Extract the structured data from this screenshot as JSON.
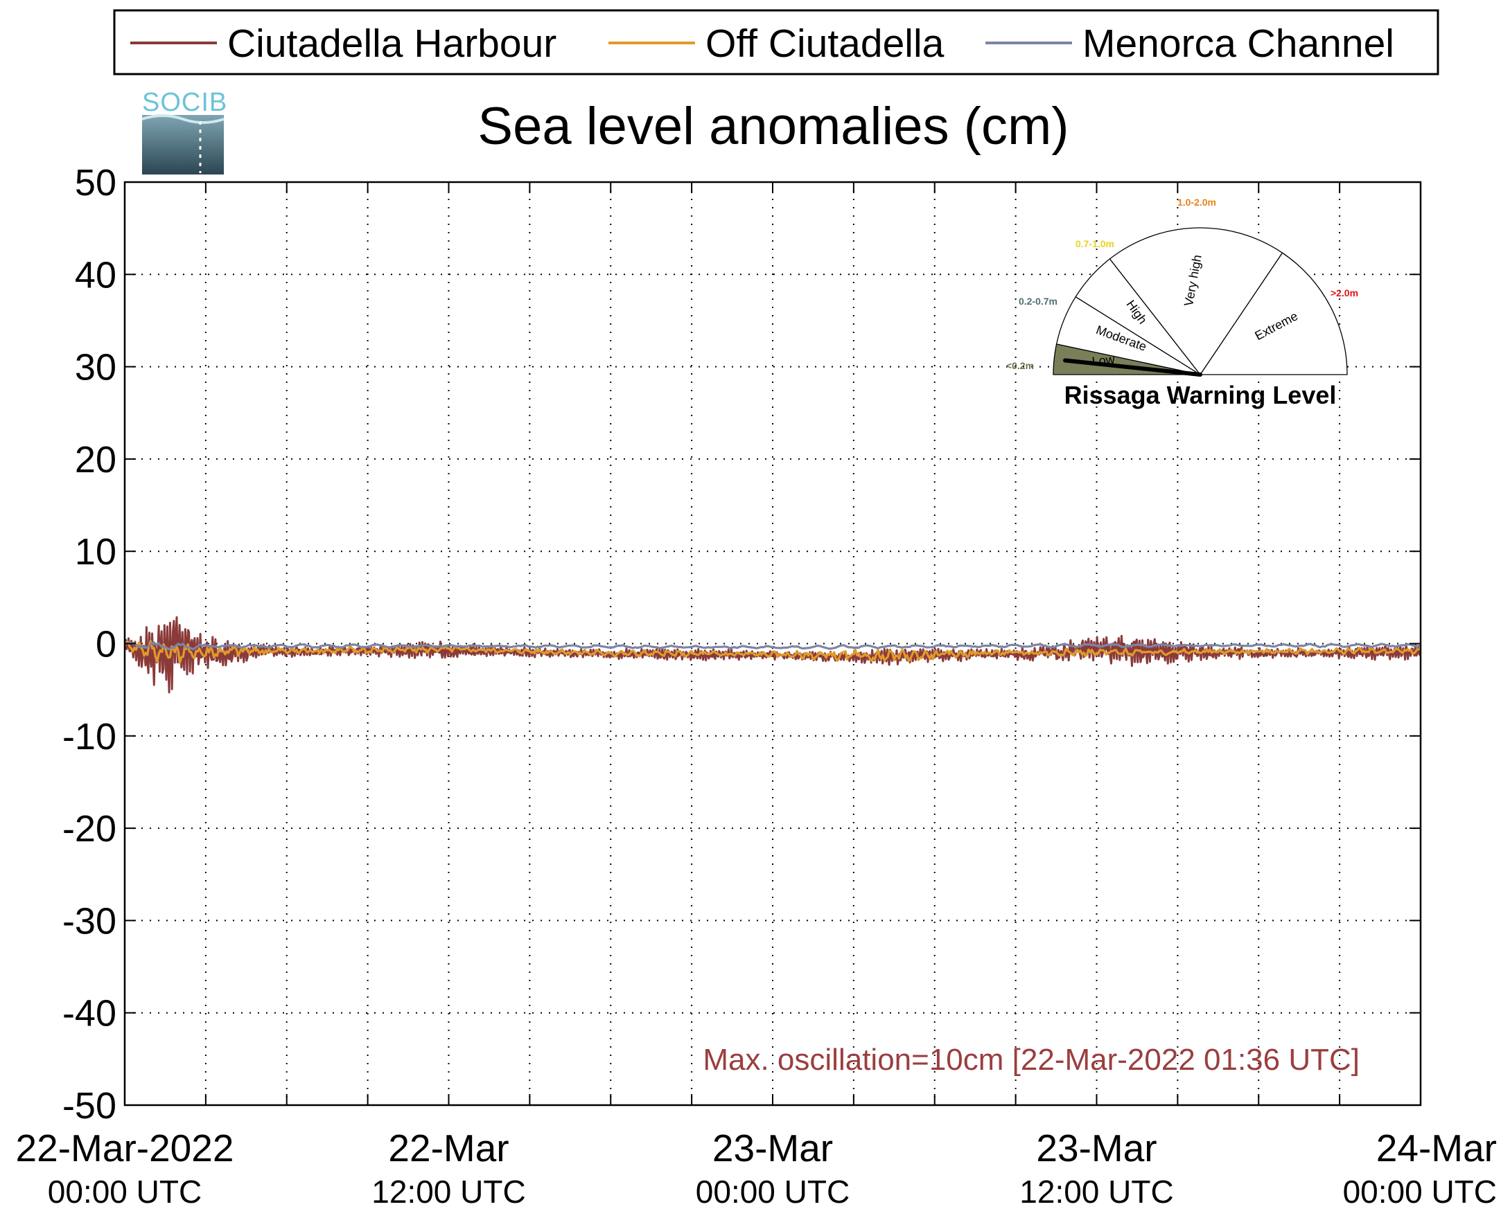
{
  "logo": {
    "text": "SOCIB",
    "color": "#6cc3d6"
  },
  "legend": {
    "items": [
      {
        "name": "Ciutadella Harbour",
        "color": "#8b3a3a"
      },
      {
        "name": "Off Ciutadella",
        "color": "#e09a2a"
      },
      {
        "name": "Menorca Channel",
        "color": "#7b85a6"
      }
    ]
  },
  "chart_data": {
    "type": "line",
    "title": "Sea level anomalies (cm)",
    "xlabel": "",
    "ylabel": "",
    "ylim": [
      -50,
      50
    ],
    "yticks": [
      50,
      40,
      30,
      20,
      10,
      0,
      -10,
      -20,
      -30,
      -40,
      -50
    ],
    "x_units": "hours since 22-Mar-2022 00:00 UTC",
    "xlim": [
      0,
      48
    ],
    "xticks": [
      {
        "x": 0,
        "date": "22-Mar-2022",
        "time": "00:00 UTC"
      },
      {
        "x": 12,
        "date": "22-Mar",
        "time": "12:00 UTC"
      },
      {
        "x": 24,
        "date": "23-Mar",
        "time": "00:00 UTC"
      },
      {
        "x": 36,
        "date": "23-Mar",
        "time": "12:00 UTC"
      },
      {
        "x": 48,
        "date": "24-Mar",
        "time": "00:00 UTC"
      }
    ],
    "minor_grid_hours": 3,
    "grid": true,
    "legend_position": "top",
    "series": [
      {
        "name": "Ciutadella Harbour",
        "color": "#8b3a3a",
        "envelope": [
          {
            "x": 0.0,
            "y_min": -0.5,
            "y_max": 0.5
          },
          {
            "x": 0.5,
            "y_min": -3.0,
            "y_max": 1.5
          },
          {
            "x": 1.0,
            "y_min": -5.0,
            "y_max": 3.0
          },
          {
            "x": 1.6,
            "y_min": -6.5,
            "y_max": 4.8
          },
          {
            "x": 2.0,
            "y_min": -4.5,
            "y_max": 3.5
          },
          {
            "x": 2.5,
            "y_min": -3.5,
            "y_max": 2.0
          },
          {
            "x": 3.0,
            "y_min": -3.0,
            "y_max": 1.0
          },
          {
            "x": 4.0,
            "y_min": -2.5,
            "y_max": 0.5
          },
          {
            "x": 5.0,
            "y_min": -2.0,
            "y_max": 0.3
          },
          {
            "x": 6.0,
            "y_min": -1.8,
            "y_max": 0.0
          },
          {
            "x": 9.0,
            "y_min": -1.5,
            "y_max": 0.0
          },
          {
            "x": 12.0,
            "y_min": -1.7,
            "y_max": 0.3
          },
          {
            "x": 16.0,
            "y_min": -1.8,
            "y_max": -0.3
          },
          {
            "x": 20.0,
            "y_min": -1.8,
            "y_max": -0.5
          },
          {
            "x": 24.0,
            "y_min": -2.0,
            "y_max": -0.5
          },
          {
            "x": 26.0,
            "y_min": -2.2,
            "y_max": -0.6
          },
          {
            "x": 28.0,
            "y_min": -2.5,
            "y_max": -0.5
          },
          {
            "x": 30.0,
            "y_min": -2.0,
            "y_max": -0.5
          },
          {
            "x": 32.0,
            "y_min": -2.0,
            "y_max": -0.3
          },
          {
            "x": 33.5,
            "y_min": -2.2,
            "y_max": 0.0
          },
          {
            "x": 35.0,
            "y_min": -2.5,
            "y_max": 1.0
          },
          {
            "x": 36.0,
            "y_min": -2.8,
            "y_max": 1.5
          },
          {
            "x": 37.0,
            "y_min": -2.6,
            "y_max": 1.2
          },
          {
            "x": 38.5,
            "y_min": -2.2,
            "y_max": 0.6
          },
          {
            "x": 40.0,
            "y_min": -2.0,
            "y_max": 0.0
          },
          {
            "x": 44.0,
            "y_min": -1.8,
            "y_max": -0.2
          },
          {
            "x": 48.0,
            "y_min": -1.8,
            "y_max": 0.0
          }
        ]
      },
      {
        "name": "Off Ciutadella",
        "color": "#e09a2a",
        "envelope": [
          {
            "x": 0.0,
            "y_min": -0.5,
            "y_max": 0.3
          },
          {
            "x": 1.0,
            "y_min": -2.0,
            "y_max": 0.5
          },
          {
            "x": 2.0,
            "y_min": -2.2,
            "y_max": 0.3
          },
          {
            "x": 4.0,
            "y_min": -1.6,
            "y_max": 0.0
          },
          {
            "x": 8.0,
            "y_min": -1.2,
            "y_max": -0.3
          },
          {
            "x": 12.0,
            "y_min": -1.0,
            "y_max": -0.2
          },
          {
            "x": 18.0,
            "y_min": -1.4,
            "y_max": -0.7
          },
          {
            "x": 24.0,
            "y_min": -1.6,
            "y_max": -0.7
          },
          {
            "x": 28.0,
            "y_min": -2.2,
            "y_max": -0.6
          },
          {
            "x": 32.0,
            "y_min": -1.4,
            "y_max": -0.6
          },
          {
            "x": 36.0,
            "y_min": -1.4,
            "y_max": -0.5
          },
          {
            "x": 42.0,
            "y_min": -1.2,
            "y_max": -0.5
          },
          {
            "x": 48.0,
            "y_min": -1.2,
            "y_max": -0.4
          }
        ]
      },
      {
        "name": "Menorca Channel",
        "color": "#7b85a6",
        "envelope": [
          {
            "x": 0.0,
            "y_min": -0.4,
            "y_max": 0.2
          },
          {
            "x": 2.0,
            "y_min": -0.8,
            "y_max": 0.2
          },
          {
            "x": 6.0,
            "y_min": -0.5,
            "y_max": 0.0
          },
          {
            "x": 12.0,
            "y_min": -0.4,
            "y_max": -0.1
          },
          {
            "x": 24.0,
            "y_min": -0.6,
            "y_max": -0.2
          },
          {
            "x": 36.0,
            "y_min": -0.4,
            "y_max": 0.0
          },
          {
            "x": 48.0,
            "y_min": -0.4,
            "y_max": 0.0
          }
        ]
      }
    ],
    "annotation": {
      "text": "Max. oscillation=10cm [22-Mar-2022 01:36 UTC]",
      "color": "#9b3e3e"
    }
  },
  "gauge": {
    "title": "Rissaga Warning Level",
    "current_level": "Low",
    "levels": [
      {
        "name": "Low",
        "range": "<0.2m",
        "range_color": "#6b7048"
      },
      {
        "name": "Moderate",
        "range": "0.2-0.7m",
        "range_color": "#4f6e6e"
      },
      {
        "name": "High",
        "range": "0.7-1.0m",
        "range_color": "#e8d21f"
      },
      {
        "name": "Very high",
        "range": "1.0-2.0m",
        "range_color": "#e8821a"
      },
      {
        "name": "Extreme",
        "range": ">2.0m",
        "range_color": "#e0141a"
      }
    ],
    "active_fill": "#7a7f5a"
  }
}
